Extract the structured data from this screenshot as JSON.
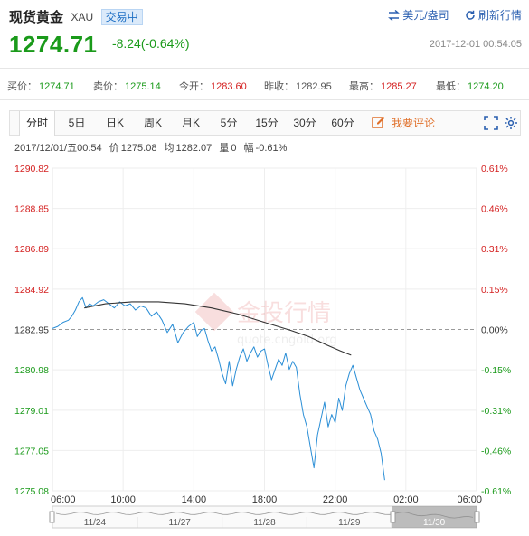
{
  "header": {
    "title": "现货黄金",
    "code": "XAU",
    "status": "交易中",
    "currency_toggle": "美元/盎司",
    "refresh": "刷新行情"
  },
  "quote": {
    "last": "1274.71",
    "change": "-8.24(-0.64%)",
    "timestamp": "2017-12-01 00:54:05"
  },
  "stats": {
    "bid_label": "买价：",
    "bid": "1274.71",
    "ask_label": "卖价：",
    "ask": "1275.14",
    "open_label": "今开：",
    "open": "1283.60",
    "prev_label": "昨收：",
    "prev": "1282.95",
    "high_label": "最高：",
    "high": "1285.27",
    "low_label": "最低：",
    "low": "1274.20"
  },
  "tabs": [
    {
      "label": "分时",
      "active": true
    },
    {
      "label": "5日"
    },
    {
      "label": "日K"
    },
    {
      "label": "周K"
    },
    {
      "label": "月K"
    },
    {
      "label": "5分"
    },
    {
      "label": "15分"
    },
    {
      "label": "30分"
    },
    {
      "label": "60分"
    }
  ],
  "comment_label": "我要评论",
  "info": {
    "datetime": "2017/12/01/五00:54",
    "price_label": "价",
    "price": "1275.08",
    "avg_label": "均",
    "avg": "1282.07",
    "vol_label": "量",
    "vol": "0",
    "amp_label": "幅",
    "amp": "-0.61%"
  },
  "watermark": {
    "text": "金投行情",
    "url": "quote.cngold.org"
  },
  "colors": {
    "up": "#d42020",
    "down": "#1a9a1a",
    "price_line": "#2a8ed6",
    "avg_line": "#333333"
  },
  "chart_data": {
    "type": "line",
    "baseline": 1282.95,
    "y_ticks": [
      "1290.82",
      "1288.85",
      "1286.89",
      "1284.92",
      "1282.95",
      "1280.98",
      "1279.01",
      "1277.05",
      "1275.08"
    ],
    "pct_ticks": [
      "0.61%",
      "0.46%",
      "0.31%",
      "0.15%",
      "0.00%",
      "-0.15%",
      "-0.31%",
      "-0.46%",
      "-0.61%"
    ],
    "ylim": [
      1275.08,
      1290.82
    ],
    "x_ticks": [
      "06:00",
      "10:00",
      "14:00",
      "18:00",
      "22:00",
      "02:00",
      "06:00"
    ],
    "xlim": [
      0,
      24
    ],
    "navigator_dates": [
      "11/24",
      "11/27",
      "11/28",
      "11/29",
      "11/30"
    ],
    "series": [
      {
        "role": "price",
        "x": [
          0,
          0.3,
          0.6,
          0.9,
          1.1,
          1.3,
          1.5,
          1.7,
          1.9,
          2.1,
          2.3,
          2.6,
          2.9,
          3.2,
          3.5,
          3.8,
          4.1,
          4.4,
          4.7,
          5.0,
          5.3,
          5.6,
          5.9,
          6.2,
          6.5,
          6.8,
          7.1,
          7.4,
          7.7,
          8.0,
          8.2,
          8.4,
          8.6,
          8.8,
          9.0,
          9.2,
          9.4,
          9.6,
          9.8,
          10.0,
          10.2,
          10.4,
          10.6,
          10.8,
          11.0,
          11.2,
          11.4,
          11.6,
          11.8,
          12.0,
          12.2,
          12.4,
          12.6,
          12.8,
          13.0,
          13.2,
          13.4,
          13.6,
          13.8,
          14.0,
          14.2,
          14.4,
          14.6,
          14.8,
          15.0,
          15.2,
          15.4,
          15.6,
          15.8,
          16.0,
          16.2,
          16.4,
          16.6,
          16.8,
          17.0,
          17.2,
          17.4,
          17.6,
          17.8,
          18.0,
          18.2,
          18.4,
          18.6,
          18.8
        ],
        "values": [
          1283.0,
          1283.1,
          1283.3,
          1283.4,
          1283.6,
          1283.9,
          1284.3,
          1284.5,
          1284.0,
          1284.2,
          1284.1,
          1284.3,
          1284.4,
          1284.2,
          1284.0,
          1284.3,
          1284.1,
          1284.2,
          1283.9,
          1284.1,
          1284.0,
          1283.6,
          1283.8,
          1283.4,
          1282.8,
          1283.2,
          1282.3,
          1282.8,
          1283.1,
          1283.3,
          1282.6,
          1282.9,
          1283.0,
          1282.4,
          1281.9,
          1282.1,
          1281.5,
          1280.8,
          1280.3,
          1281.4,
          1280.2,
          1281.0,
          1281.6,
          1282.0,
          1281.4,
          1281.8,
          1282.1,
          1281.6,
          1281.9,
          1282.0,
          1281.2,
          1280.5,
          1281.0,
          1281.5,
          1281.2,
          1281.8,
          1281.0,
          1281.4,
          1281.1,
          1279.8,
          1278.8,
          1278.2,
          1277.2,
          1276.2,
          1277.8,
          1278.6,
          1279.4,
          1278.2,
          1278.8,
          1278.4,
          1279.6,
          1279.0,
          1280.2,
          1280.8,
          1281.2,
          1280.6,
          1280.0,
          1279.6,
          1279.2,
          1278.8,
          1278.0,
          1277.6,
          1276.9,
          1275.6
        ]
      },
      {
        "role": "average",
        "x": [
          1.8,
          3,
          4.5,
          6,
          7.5,
          9,
          10.5,
          12,
          13.5,
          14.5,
          15.5,
          16.3,
          16.9
        ],
        "values": [
          1284.0,
          1284.2,
          1284.3,
          1284.3,
          1284.2,
          1284.0,
          1283.7,
          1283.3,
          1282.9,
          1282.6,
          1282.2,
          1281.9,
          1281.7
        ]
      }
    ]
  }
}
